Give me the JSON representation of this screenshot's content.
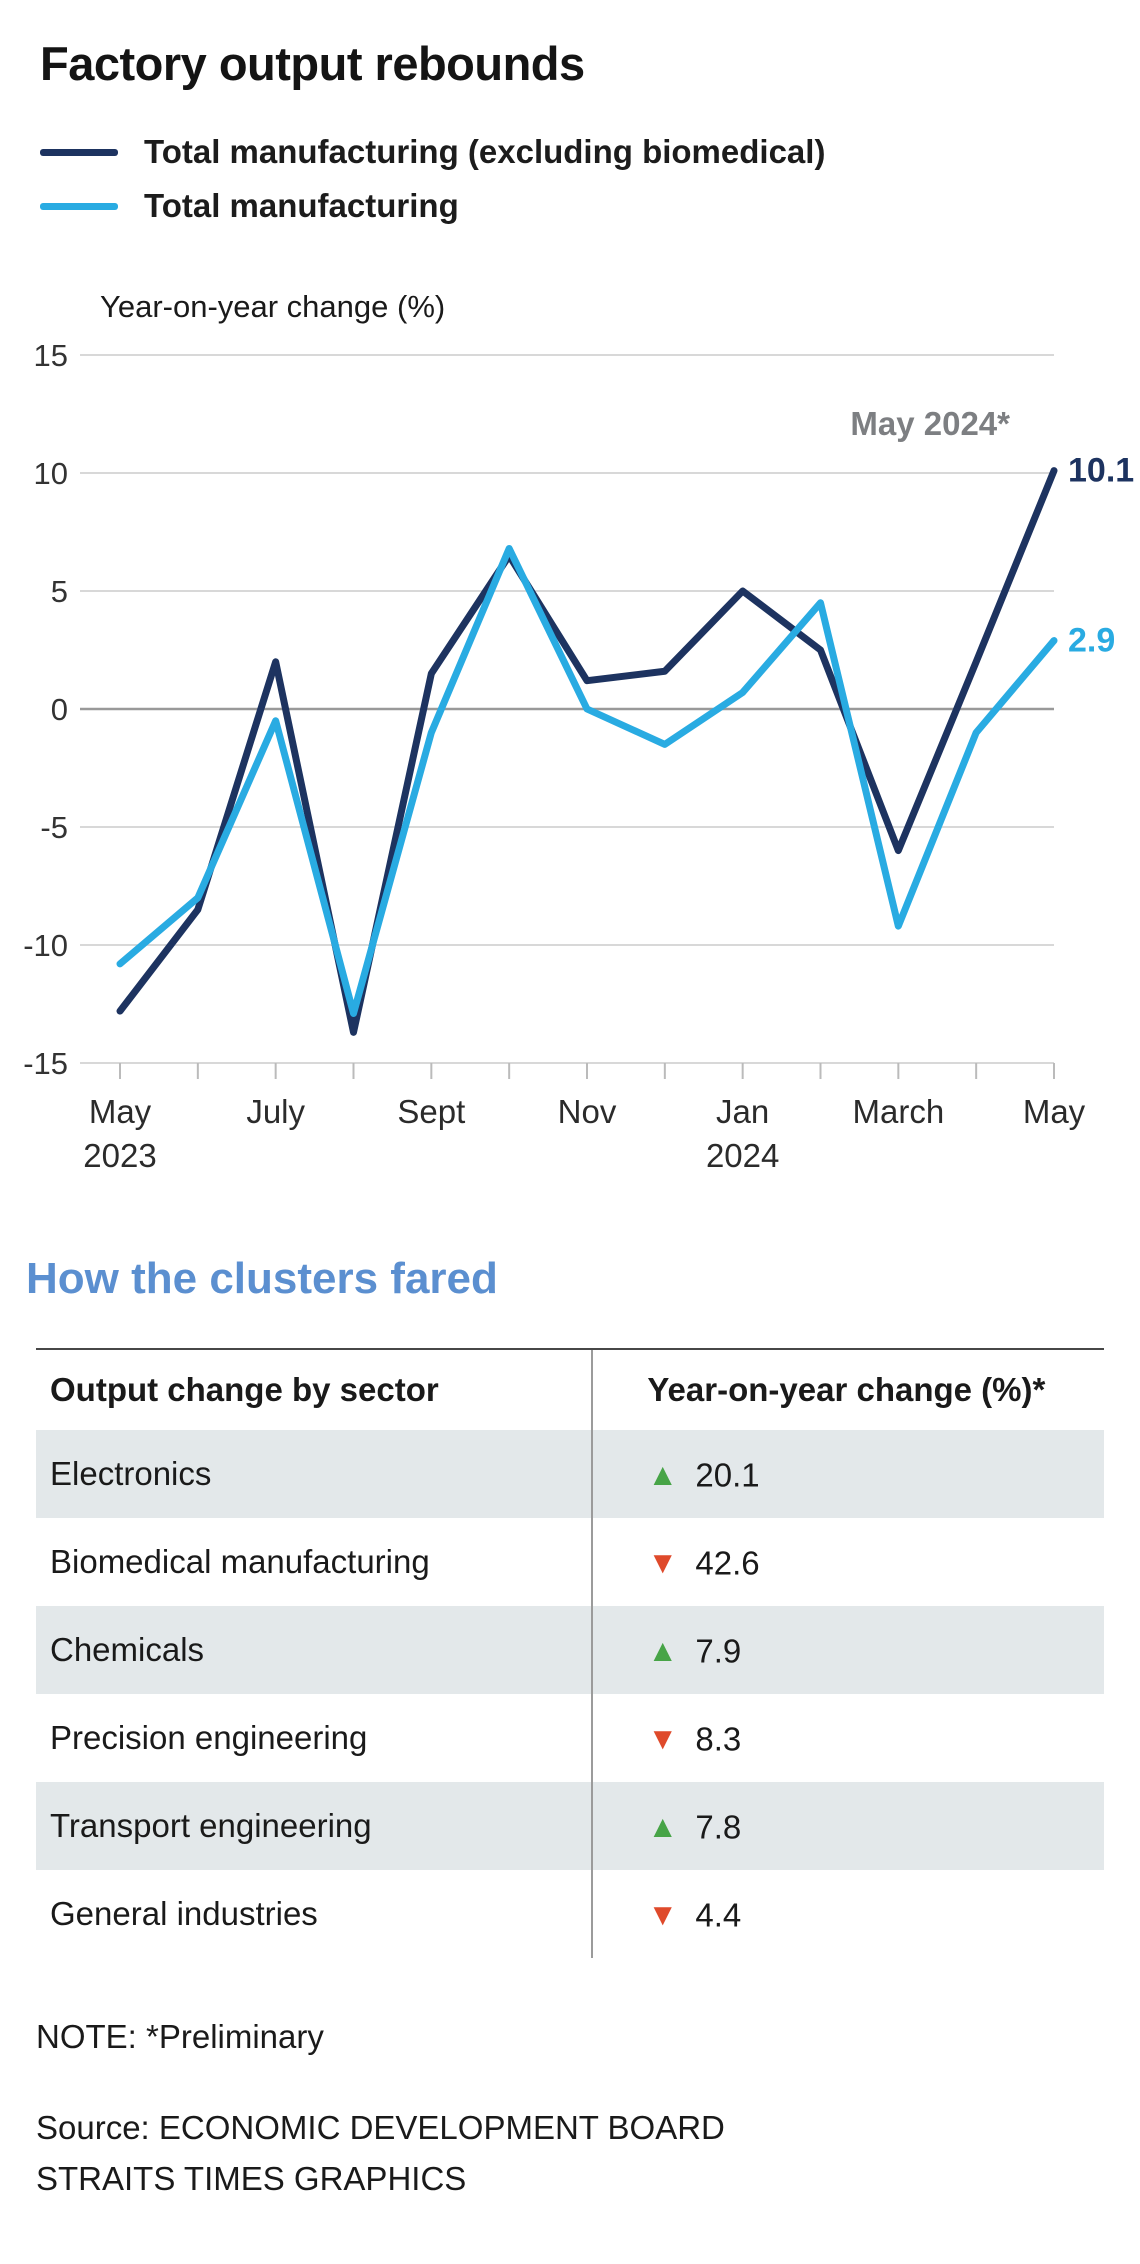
{
  "title": "Factory output rebounds",
  "legend": [
    {
      "label": "Total manufacturing (excluding biomedical)",
      "color": "#1d3360"
    },
    {
      "label": "Total manufacturing",
      "color": "#29abe2"
    }
  ],
  "chart_data": {
    "type": "line",
    "ylabel": "Year-on-year change (%)",
    "ylim": [
      -15,
      15
    ],
    "yticks": [
      15,
      10,
      5,
      0,
      -5,
      -10,
      -15
    ],
    "x": [
      "May 2023",
      "June",
      "July",
      "August",
      "September",
      "October",
      "November",
      "December",
      "January 2024",
      "February",
      "March",
      "April",
      "May 2024"
    ],
    "xticks": [
      {
        "index": 0,
        "line1": "May",
        "line2": "2023"
      },
      {
        "index": 2,
        "line1": "July"
      },
      {
        "index": 4,
        "line1": "Sept"
      },
      {
        "index": 6,
        "line1": "Nov"
      },
      {
        "index": 8,
        "line1": "Jan",
        "line2": "2024"
      },
      {
        "index": 10,
        "line1": "March"
      },
      {
        "index": 12,
        "line1": "May"
      }
    ],
    "annotation": "May 2024*",
    "grid": true,
    "legend_position": "top",
    "series": [
      {
        "name": "Total manufacturing (excluding biomedical)",
        "color": "#1d3360",
        "values": [
          -12.8,
          -8.5,
          2.0,
          -13.7,
          1.5,
          6.5,
          1.2,
          1.6,
          5.0,
          2.5,
          -6.0,
          2.0,
          10.1
        ],
        "end_label": "10.1"
      },
      {
        "name": "Total manufacturing",
        "color": "#29abe2",
        "values": [
          -10.8,
          -8.0,
          -0.5,
          -12.9,
          -1.0,
          6.8,
          0.0,
          -1.5,
          0.7,
          4.5,
          -9.2,
          -1.0,
          2.9
        ],
        "end_label": "2.9"
      }
    ]
  },
  "clusters": {
    "heading": "How the clusters fared",
    "heading_color": "#5b8fd0",
    "col1": "Output change by sector",
    "col2": "Year-on-year change (%)*",
    "up_color": "#47a447",
    "down_color": "#df4a2b",
    "rows": [
      {
        "sector": "Electronics",
        "direction": "up",
        "value": "20.1"
      },
      {
        "sector": "Biomedical manufacturing",
        "direction": "down",
        "value": "42.6"
      },
      {
        "sector": "Chemicals",
        "direction": "up",
        "value": "7.9"
      },
      {
        "sector": "Precision engineering",
        "direction": "down",
        "value": "8.3"
      },
      {
        "sector": "Transport engineering",
        "direction": "up",
        "value": "7.8"
      },
      {
        "sector": "General industries",
        "direction": "down",
        "value": "4.4"
      }
    ]
  },
  "notes": {
    "note": "NOTE: *Preliminary",
    "source1": "Source: ECONOMIC DEVELOPMENT BOARD",
    "source2": "STRAITS TIMES GRAPHICS"
  }
}
